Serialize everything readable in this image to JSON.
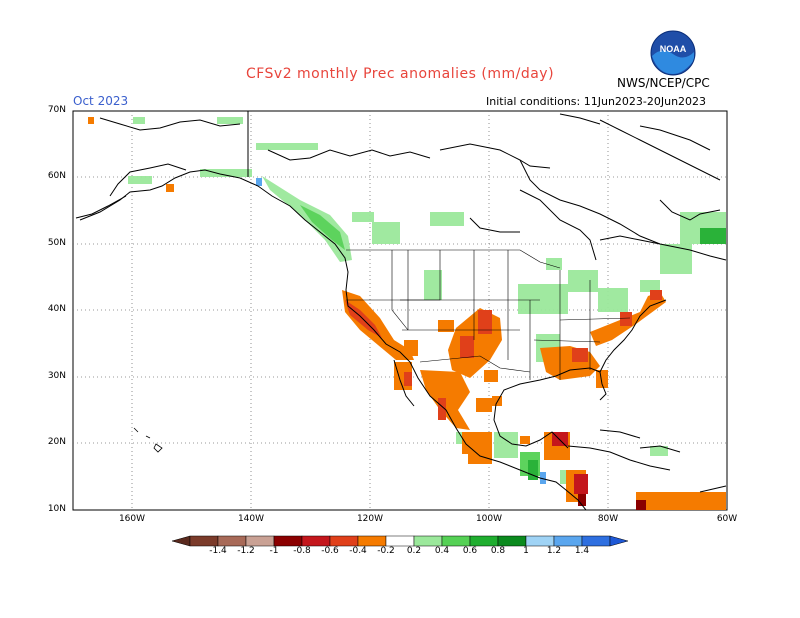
{
  "title": "CFSv2 monthly Prec anomalies (mm/day)",
  "valid_month": "Oct 2023",
  "initial_conditions": "Initial conditions: 11Jun2023-20Jun2023",
  "agency": "NWS/NCEP/CPC",
  "logo_text": "NOAA",
  "lat_labels": [
    "70N",
    "60N",
    "50N",
    "40N",
    "30N",
    "20N",
    "10N"
  ],
  "lon_labels": [
    "160W",
    "140W",
    "120W",
    "100W",
    "80W",
    "60W"
  ],
  "colorbar": {
    "labels": [
      "-1.4",
      "-1.2",
      "-1",
      "-0.8",
      "-0.6",
      "-0.4",
      "-0.2",
      "0.2",
      "0.4",
      "0.6",
      "0.8",
      "1",
      "1.2",
      "1.4"
    ],
    "colors": [
      "#7b3b2a",
      "#a86a58",
      "#c9a194",
      "#8b0000",
      "#c4161c",
      "#e0401a",
      "#f57b00",
      "#ffffff",
      "#9be89b",
      "#55d155",
      "#1fae2f",
      "#0b8a1e",
      "#9fd3f5",
      "#5aa6ee",
      "#2e6fe0"
    ],
    "left_triangle_color": "#5a2a1e",
    "right_triangle_color": "#1e58d6"
  },
  "map": {
    "ocean_color": "#ffffff",
    "coast_color": "#000000",
    "grid_style": "dotted",
    "lat_range": [
      10,
      70
    ],
    "lon_range": [
      -170,
      -60
    ]
  }
}
